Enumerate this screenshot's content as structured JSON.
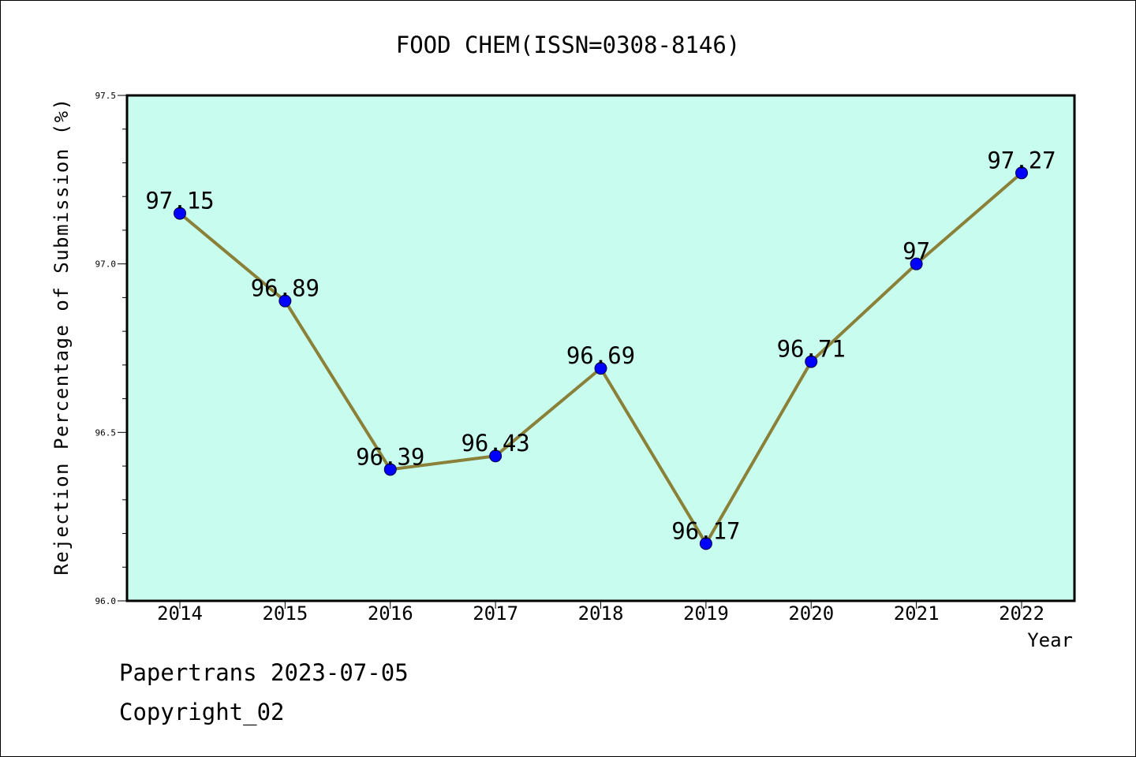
{
  "chart_data": {
    "type": "line",
    "title": "FOOD CHEM(ISSN=0308-8146)",
    "xlabel": "Year",
    "ylabel": "Rejection Percentage of Submission (%)",
    "categories": [
      "2014",
      "2015",
      "2016",
      "2017",
      "2018",
      "2019",
      "2020",
      "2021",
      "2022"
    ],
    "values": [
      97.15,
      96.89,
      96.39,
      96.43,
      96.69,
      96.17,
      96.71,
      97,
      97.27
    ],
    "data_labels": [
      "97.15",
      "96.89",
      "96.39",
      "96.43",
      "96.69",
      "96.17",
      "96.71",
      "97",
      "97.27"
    ],
    "ylim": [
      96.0,
      97.5
    ],
    "y_ticks": [
      "96.0",
      "96.5",
      "97.0",
      "97.5"
    ],
    "y_minor_step": 0.1,
    "grid": false,
    "colors": {
      "plot_background": "#c8fcee",
      "line": "#8b8038",
      "marker": "#0000ff"
    }
  },
  "footer": {
    "watermark": "Papertrans 2023-07-05",
    "copyright": "Copyright_02"
  }
}
